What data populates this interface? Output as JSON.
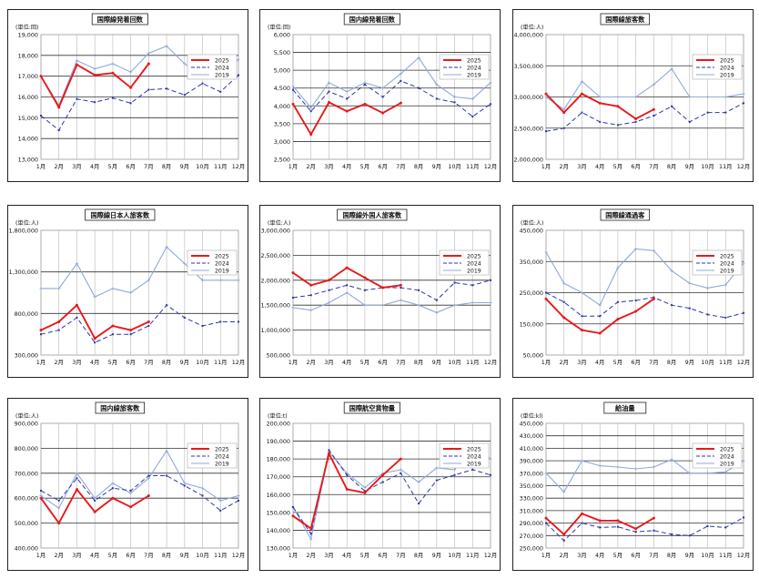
{
  "series_names": [
    "2025",
    "2024",
    "2019"
  ],
  "colors": {
    "2025": "#e8191b",
    "2024": "#2d34a8",
    "2019": "#8fa9d8"
  },
  "months": [
    "1月",
    "2月",
    "3月",
    "4月",
    "5月",
    "6月",
    "7月",
    "8月",
    "9月",
    "10月",
    "11月",
    "12月"
  ],
  "chart_data": [
    {
      "type": "line",
      "title": "国際線発着回数",
      "unit_label": "(単位:回)",
      "ylim": [
        13000,
        19000
      ],
      "yticks": [
        "13,000",
        "14,000",
        "15,000",
        "16,000",
        "17,000",
        "18,000",
        "19,000"
      ],
      "series": [
        {
          "name": "2025",
          "values": [
            17000,
            15500,
            17550,
            17050,
            17150,
            16450,
            17600
          ]
        },
        {
          "name": "2024",
          "values": [
            15100,
            14400,
            15900,
            15750,
            15950,
            15700,
            16350,
            16400,
            16100,
            16650,
            16250,
            17050
          ]
        },
        {
          "name": "2019",
          "values": [
            17000,
            15600,
            17750,
            17350,
            17600,
            17200,
            18100,
            18450,
            17600,
            17000,
            17100,
            17800
          ]
        }
      ]
    },
    {
      "type": "line",
      "title": "国内線発着回数",
      "unit_label": "(単位:回)",
      "ylim": [
        2500,
        6000
      ],
      "yticks": [
        "2,500",
        "3,000",
        "3,500",
        "4,000",
        "4,500",
        "5,000",
        "5,500",
        "6,000"
      ],
      "series": [
        {
          "name": "2025",
          "values": [
            4050,
            3200,
            4100,
            3850,
            4050,
            3800,
            4080
          ]
        },
        {
          "name": "2024",
          "values": [
            4450,
            3850,
            4400,
            4200,
            4600,
            4250,
            4700,
            4500,
            4200,
            4100,
            3700,
            4050
          ]
        },
        {
          "name": "2019",
          "values": [
            4550,
            3950,
            4650,
            4400,
            4650,
            4500,
            4900,
            5350,
            4600,
            4250,
            4200,
            4650
          ]
        }
      ]
    },
    {
      "type": "line",
      "title": "国際線旅客数",
      "unit_label": "(単位:人)",
      "ylim": [
        2000000,
        4000000
      ],
      "yticks": [
        "2,000,000",
        "2,500,000",
        "3,000,000",
        "3,500,000",
        "4,000,000"
      ],
      "series": [
        {
          "name": "2025",
          "values": [
            3050000,
            2750000,
            3050000,
            2900000,
            2850000,
            2650000,
            2800000
          ]
        },
        {
          "name": "2024",
          "values": [
            2450000,
            2500000,
            2750000,
            2600000,
            2550000,
            2600000,
            2700000,
            2850000,
            2600000,
            2750000,
            2750000,
            2900000
          ]
        },
        {
          "name": "2019",
          "values": [
            3000000,
            2800000,
            3250000,
            3000000,
            3000000,
            3000000,
            3200000,
            3450000,
            3000000,
            3000000,
            3000000,
            3050000
          ]
        }
      ]
    },
    {
      "type": "line",
      "title": "国際線日本人旅客数",
      "unit_label": "(単位:人)",
      "ylim": [
        300000,
        1800000
      ],
      "yticks": [
        "300,000",
        "800,000",
        "1,300,000",
        "1,800,000"
      ],
      "series": [
        {
          "name": "2025",
          "values": [
            600000,
            700000,
            900000,
            500000,
            650000,
            600000,
            700000
          ]
        },
        {
          "name": "2024",
          "values": [
            550000,
            600000,
            750000,
            450000,
            550000,
            550000,
            650000,
            900000,
            750000,
            650000,
            700000,
            700000
          ]
        },
        {
          "name": "2019",
          "values": [
            1100000,
            1100000,
            1400000,
            1000000,
            1100000,
            1050000,
            1200000,
            1600000,
            1400000,
            1200000,
            1200000,
            1200000
          ]
        }
      ]
    },
    {
      "type": "line",
      "title": "国際線外国人旅客数",
      "unit_label": "(単位:人)",
      "ylim": [
        500000,
        3000000
      ],
      "yticks": [
        "500,000",
        "1,000,000",
        "1,500,000",
        "2,000,000",
        "2,500,000",
        "3,000,000"
      ],
      "series": [
        {
          "name": "2025",
          "values": [
            2150000,
            1900000,
            2000000,
            2250000,
            2050000,
            1850000,
            1900000
          ]
        },
        {
          "name": "2024",
          "values": [
            1650000,
            1700000,
            1800000,
            1900000,
            1800000,
            1850000,
            1850000,
            1800000,
            1600000,
            1950000,
            1900000,
            2000000
          ]
        },
        {
          "name": "2019",
          "values": [
            1450000,
            1400000,
            1550000,
            1750000,
            1500000,
            1500000,
            1600000,
            1500000,
            1350000,
            1500000,
            1550000,
            1550000
          ]
        }
      ]
    },
    {
      "type": "line",
      "title": "国際線通過客",
      "unit_label": "(単位:人)",
      "ylim": [
        50000,
        450000
      ],
      "yticks": [
        "50,000",
        "150,000",
        "250,000",
        "350,000",
        "450,000"
      ],
      "series": [
        {
          "name": "2025",
          "values": [
            230000,
            170000,
            130000,
            120000,
            165000,
            190000,
            230000
          ]
        },
        {
          "name": "2024",
          "values": [
            250000,
            220000,
            175000,
            175000,
            220000,
            225000,
            235000,
            210000,
            200000,
            180000,
            170000,
            185000
          ]
        },
        {
          "name": "2019",
          "values": [
            380000,
            280000,
            250000,
            210000,
            330000,
            390000,
            385000,
            320000,
            280000,
            265000,
            275000,
            345000
          ]
        }
      ]
    },
    {
      "type": "line",
      "title": "国内線旅客数",
      "unit_label": "(単位:人)",
      "ylim": [
        400000,
        900000
      ],
      "yticks": [
        "400,000",
        "500,000",
        "600,000",
        "700,000",
        "800,000",
        "900,000"
      ],
      "series": [
        {
          "name": "2025",
          "values": [
            600000,
            500000,
            635000,
            545000,
            600000,
            565000,
            610000
          ]
        },
        {
          "name": "2024",
          "values": [
            630000,
            590000,
            680000,
            590000,
            640000,
            630000,
            690000,
            690000,
            650000,
            610000,
            550000,
            590000
          ]
        },
        {
          "name": "2019",
          "values": [
            610000,
            560000,
            700000,
            600000,
            660000,
            620000,
            680000,
            790000,
            660000,
            640000,
            590000,
            610000
          ]
        }
      ]
    },
    {
      "type": "line",
      "title": "国際航空貨物量",
      "unit_label": "(単位:t)",
      "ylim": [
        130000,
        200000
      ],
      "yticks": [
        "130,000",
        "140,000",
        "150,000",
        "160,000",
        "170,000",
        "180,000",
        "190,000",
        "200,000"
      ],
      "series": [
        {
          "name": "2025",
          "values": [
            148000,
            141000,
            183000,
            163000,
            161000,
            171000,
            180000
          ]
        },
        {
          "name": "2024",
          "values": [
            153000,
            138000,
            185000,
            171000,
            162000,
            167000,
            172000,
            155000,
            168000,
            171000,
            174000,
            171000
          ]
        },
        {
          "name": "2019",
          "values": [
            153000,
            135000,
            184000,
            172000,
            164000,
            172000,
            174000,
            167000,
            175000,
            174000,
            188000,
            180000
          ]
        }
      ]
    },
    {
      "type": "line",
      "title": "給油量",
      "unit_label": "(単位:kl)",
      "ylim": [
        250000,
        450000
      ],
      "yticks": [
        "250,000",
        "270,000",
        "290,000",
        "310,000",
        "330,000",
        "350,000",
        "370,000",
        "390,000",
        "410,000",
        "430,000",
        "450,000"
      ],
      "series": [
        {
          "name": "2025",
          "values": [
            298000,
            272000,
            305000,
            294000,
            294000,
            281000,
            298000
          ]
        },
        {
          "name": "2024",
          "values": [
            290000,
            262000,
            290000,
            283000,
            284000,
            276000,
            278000,
            272000,
            270000,
            285000,
            283000,
            299000
          ]
        },
        {
          "name": "2019",
          "values": [
            370000,
            340000,
            390000,
            382000,
            380000,
            377000,
            380000,
            392000,
            370000,
            370000,
            372000,
            390000
          ]
        }
      ]
    }
  ]
}
